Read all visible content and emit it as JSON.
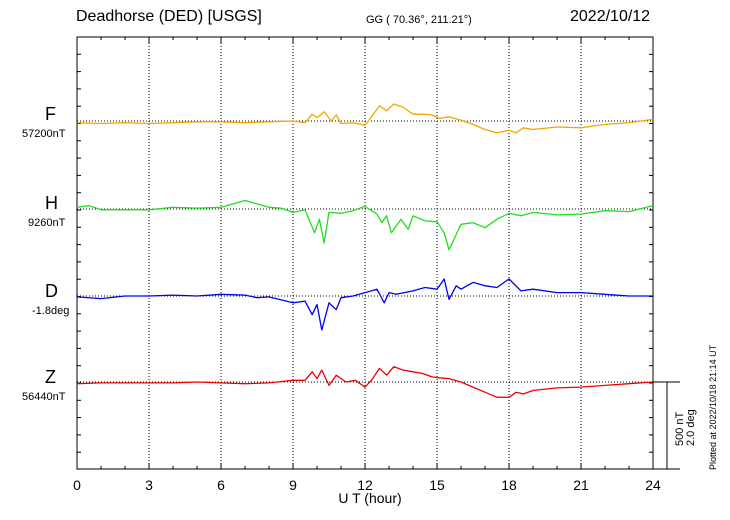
{
  "header": {
    "title": "Deadhorse (DED)  [USGS]",
    "coords": "GG ( 70.36°, 211.21°)",
    "date": "2022/10/12"
  },
  "scale": {
    "nt": "500 nT",
    "deg": "2.0 deg"
  },
  "footer": {
    "plotted": "Plotted at 2022/10/18 21:14 UT"
  },
  "chart_data": {
    "type": "line",
    "title": "Deadhorse (DED)  [USGS]",
    "xlabel": "U T (hour)",
    "xlim": [
      0,
      24
    ],
    "xticks": [
      "0",
      "3",
      "6",
      "9",
      "12",
      "15",
      "18",
      "21",
      "24"
    ],
    "grid": true,
    "y_scale": "500 nT / 2.0 deg",
    "series": [
      {
        "name": "F",
        "baseline_label": "57200nT",
        "color": "#f0a800",
        "points": [
          [
            0,
            -10
          ],
          [
            1,
            -15
          ],
          [
            2,
            -10
          ],
          [
            3,
            -15
          ],
          [
            4,
            -10
          ],
          [
            5,
            -5
          ],
          [
            6,
            -5
          ],
          [
            7,
            -10
          ],
          [
            8,
            -5
          ],
          [
            9,
            0
          ],
          [
            9.5,
            -10
          ],
          [
            9.8,
            40
          ],
          [
            10,
            20
          ],
          [
            10.3,
            55
          ],
          [
            10.6,
            0
          ],
          [
            10.8,
            35
          ],
          [
            11,
            -15
          ],
          [
            11.5,
            -10
          ],
          [
            12,
            -25
          ],
          [
            12.3,
            30
          ],
          [
            12.6,
            90
          ],
          [
            12.9,
            60
          ],
          [
            13.2,
            100
          ],
          [
            13.6,
            80
          ],
          [
            14,
            40
          ],
          [
            14.4,
            40
          ],
          [
            14.8,
            35
          ],
          [
            15.1,
            15
          ],
          [
            15.5,
            25
          ],
          [
            16,
            5
          ],
          [
            16.5,
            -20
          ],
          [
            17,
            -50
          ],
          [
            17.5,
            -70
          ],
          [
            18,
            -55
          ],
          [
            18.3,
            -70
          ],
          [
            18.6,
            -40
          ],
          [
            19,
            -50
          ],
          [
            20,
            -35
          ],
          [
            21,
            -40
          ],
          [
            22,
            -20
          ],
          [
            23,
            -10
          ],
          [
            24,
            10
          ]
        ]
      },
      {
        "name": "H",
        "baseline_label": "9260nT",
        "color": "#22dd22",
        "points": [
          [
            0,
            10
          ],
          [
            0.5,
            20
          ],
          [
            1,
            -5
          ],
          [
            2,
            -5
          ],
          [
            3,
            -5
          ],
          [
            4,
            10
          ],
          [
            5,
            5
          ],
          [
            6,
            10
          ],
          [
            7,
            50
          ],
          [
            8,
            10
          ],
          [
            8.5,
            5
          ],
          [
            9,
            -20
          ],
          [
            9.5,
            -5
          ],
          [
            9.9,
            -140
          ],
          [
            10.1,
            -60
          ],
          [
            10.3,
            -200
          ],
          [
            10.5,
            -20
          ],
          [
            11,
            -25
          ],
          [
            11.5,
            -10
          ],
          [
            12,
            15
          ],
          [
            12.5,
            -30
          ],
          [
            12.7,
            -80
          ],
          [
            12.9,
            -40
          ],
          [
            13.1,
            -140
          ],
          [
            13.5,
            -60
          ],
          [
            13.8,
            -120
          ],
          [
            14,
            -40
          ],
          [
            14.5,
            -70
          ],
          [
            15,
            -75
          ],
          [
            15.3,
            -140
          ],
          [
            15.5,
            -240
          ],
          [
            15.7,
            -180
          ],
          [
            16,
            -90
          ],
          [
            16.5,
            -80
          ],
          [
            17,
            -110
          ],
          [
            17.5,
            -60
          ],
          [
            18,
            -25
          ],
          [
            18.5,
            -40
          ],
          [
            19,
            -20
          ],
          [
            20,
            -35
          ],
          [
            21,
            -30
          ],
          [
            22,
            -10
          ],
          [
            23,
            -15
          ],
          [
            24,
            20
          ]
        ]
      },
      {
        "name": "D",
        "baseline_label": "-1.8deg",
        "color": "#0000ee",
        "points": [
          [
            0,
            -5
          ],
          [
            1,
            -15
          ],
          [
            2,
            0
          ],
          [
            3,
            0
          ],
          [
            4,
            5
          ],
          [
            5,
            0
          ],
          [
            6,
            10
          ],
          [
            7,
            5
          ],
          [
            7.5,
            -10
          ],
          [
            8,
            -5
          ],
          [
            9,
            -40
          ],
          [
            9.5,
            -30
          ],
          [
            9.8,
            -110
          ],
          [
            10,
            -50
          ],
          [
            10.2,
            -200
          ],
          [
            10.5,
            -40
          ],
          [
            10.8,
            -80
          ],
          [
            11,
            -10
          ],
          [
            11.5,
            0
          ],
          [
            12,
            20
          ],
          [
            12.5,
            40
          ],
          [
            12.8,
            -40
          ],
          [
            13,
            20
          ],
          [
            13.3,
            10
          ],
          [
            14,
            30
          ],
          [
            14.5,
            50
          ],
          [
            15,
            40
          ],
          [
            15.3,
            100
          ],
          [
            15.5,
            -20
          ],
          [
            15.8,
            60
          ],
          [
            16,
            40
          ],
          [
            16.5,
            80
          ],
          [
            17,
            60
          ],
          [
            17.5,
            50
          ],
          [
            18,
            100
          ],
          [
            18.5,
            30
          ],
          [
            19,
            40
          ],
          [
            20,
            20
          ],
          [
            21,
            20
          ],
          [
            22,
            10
          ],
          [
            23,
            0
          ],
          [
            24,
            0
          ]
        ]
      },
      {
        "name": "Z",
        "baseline_label": "56440nT",
        "color": "#ee0000",
        "points": [
          [
            0,
            -10
          ],
          [
            1,
            -5
          ],
          [
            2,
            -5
          ],
          [
            3,
            -5
          ],
          [
            4,
            -5
          ],
          [
            5,
            0
          ],
          [
            6,
            -5
          ],
          [
            7,
            -10
          ],
          [
            8,
            -5
          ],
          [
            9,
            10
          ],
          [
            9.5,
            10
          ],
          [
            9.8,
            60
          ],
          [
            10,
            20
          ],
          [
            10.2,
            70
          ],
          [
            10.5,
            -20
          ],
          [
            10.8,
            40
          ],
          [
            11.2,
            0
          ],
          [
            11.6,
            10
          ],
          [
            12,
            -30
          ],
          [
            12.3,
            15
          ],
          [
            12.6,
            80
          ],
          [
            12.9,
            40
          ],
          [
            13.2,
            90
          ],
          [
            13.6,
            70
          ],
          [
            14,
            60
          ],
          [
            14.4,
            50
          ],
          [
            14.8,
            30
          ],
          [
            15.1,
            25
          ],
          [
            15.5,
            20
          ],
          [
            16,
            0
          ],
          [
            16.5,
            -30
          ],
          [
            17,
            -60
          ],
          [
            17.5,
            -90
          ],
          [
            18,
            -90
          ],
          [
            18.3,
            -60
          ],
          [
            18.6,
            -70
          ],
          [
            19,
            -50
          ],
          [
            20,
            -35
          ],
          [
            21,
            -30
          ],
          [
            22,
            -20
          ],
          [
            23,
            -10
          ],
          [
            24,
            0
          ]
        ]
      }
    ]
  }
}
